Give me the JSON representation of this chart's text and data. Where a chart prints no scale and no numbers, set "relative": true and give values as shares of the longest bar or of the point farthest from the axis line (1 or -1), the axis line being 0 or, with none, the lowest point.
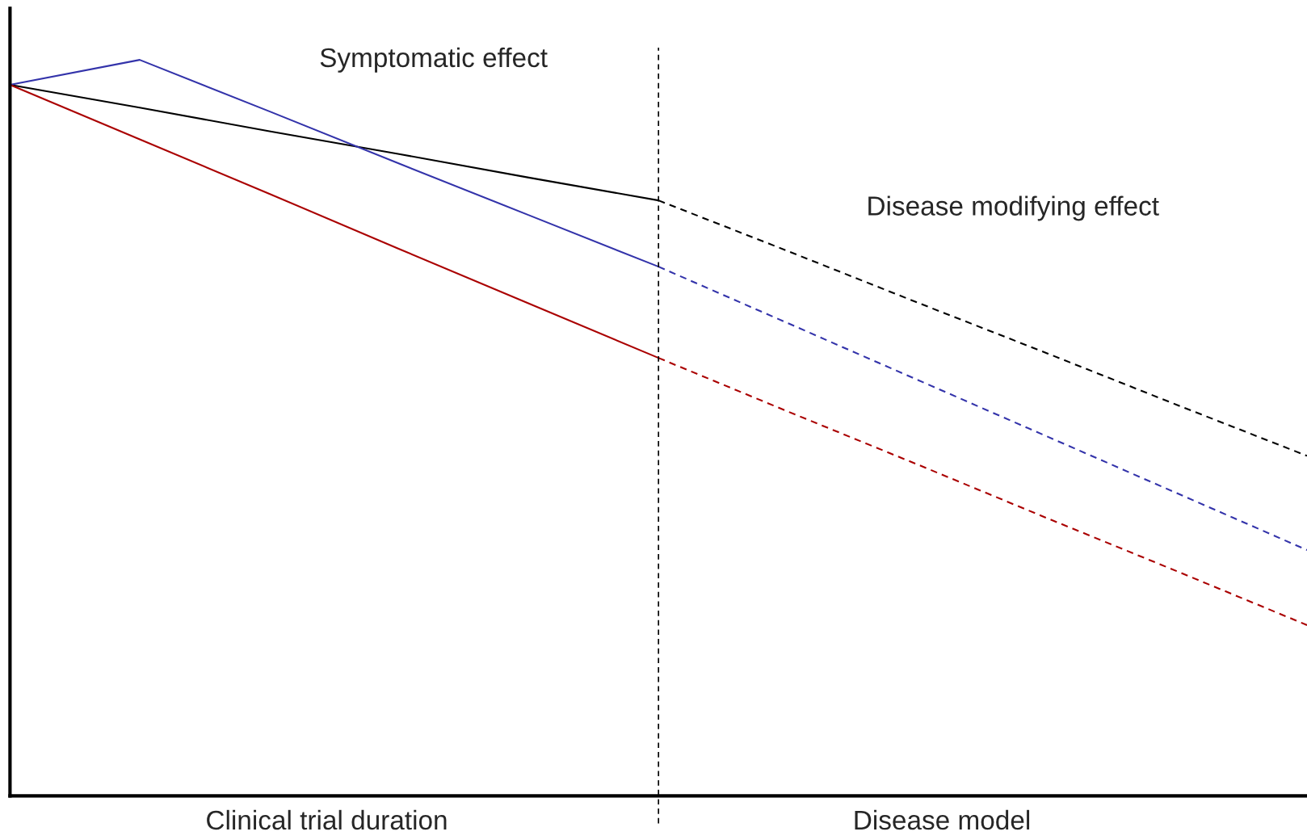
{
  "chart_data": {
    "type": "line",
    "relative": true,
    "categories": [
      null,
      null,
      null,
      null,
      null,
      null,
      null,
      null,
      null,
      null,
      null
    ],
    "grid": false,
    "legend": false,
    "marker": "none",
    "series": [
      {
        "color": "#000000",
        "line_style": "solid",
        "values": [
          0.966,
          0.935,
          0.903,
          0.872,
          0.84,
          0.809,
          null,
          null,
          null,
          null,
          null
        ]
      },
      {
        "color": "#000000",
        "line_style": "dashed",
        "values": [
          null,
          null,
          null,
          null,
          null,
          0.809,
          0.74,
          0.67,
          0.601,
          0.531,
          0.462
        ]
      },
      {
        "color": "#3333aa",
        "line_style": "solid",
        "values": [
          0.966,
          1.0,
          0.93,
          0.859,
          0.789,
          0.719,
          null,
          null,
          null,
          null,
          null
        ]
      },
      {
        "color": "#3333aa",
        "line_style": "dashed",
        "values": [
          null,
          null,
          null,
          null,
          null,
          0.719,
          0.642,
          0.565,
          0.488,
          0.411,
          0.334
        ]
      },
      {
        "color": "#aa0000",
        "line_style": "solid",
        "values": [
          0.966,
          0.892,
          0.818,
          0.743,
          0.669,
          0.595,
          null,
          null,
          null,
          null,
          null
        ]
      },
      {
        "color": "#aa0000",
        "line_style": "dashed",
        "values": [
          null,
          null,
          null,
          null,
          null,
          0.595,
          0.522,
          0.45,
          0.377,
          0.305,
          0.232
        ]
      }
    ],
    "annotations": [
      "Symptomatic effect",
      "Disease modifying effect",
      "Clinical trial duration",
      "Disease model"
    ]
  }
}
